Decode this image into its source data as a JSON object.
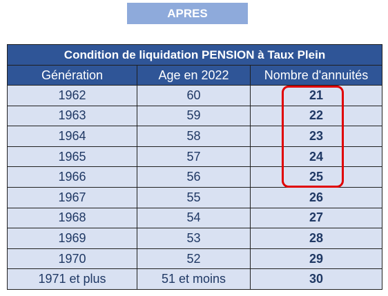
{
  "badge": {
    "label": "APRES",
    "color": "#8eaadb"
  },
  "table": {
    "title": "Condition de liquidation PENSION à Taux Plein",
    "header_color": "#2f5597",
    "row_color": "#d9e1f2",
    "columns": [
      "Génération",
      "Age en 2022",
      "Nombre d'annuités"
    ],
    "rows": [
      {
        "generation": "1962",
        "age": "60",
        "annuites": "21"
      },
      {
        "generation": "1963",
        "age": "59",
        "annuites": "22"
      },
      {
        "generation": "1964",
        "age": "58",
        "annuites": "23"
      },
      {
        "generation": "1965",
        "age": "57",
        "annuites": "24"
      },
      {
        "generation": "1966",
        "age": "56",
        "annuites": "25"
      },
      {
        "generation": "1967",
        "age": "55",
        "annuites": "26"
      },
      {
        "generation": "1968",
        "age": "54",
        "annuites": "27"
      },
      {
        "generation": "1969",
        "age": "53",
        "annuites": "28"
      },
      {
        "generation": "1970",
        "age": "52",
        "annuites": "29"
      },
      {
        "generation": "1971 et plus",
        "age": "51 et moins",
        "annuites": "30"
      }
    ]
  },
  "highlight": {
    "color": "#e00000"
  }
}
